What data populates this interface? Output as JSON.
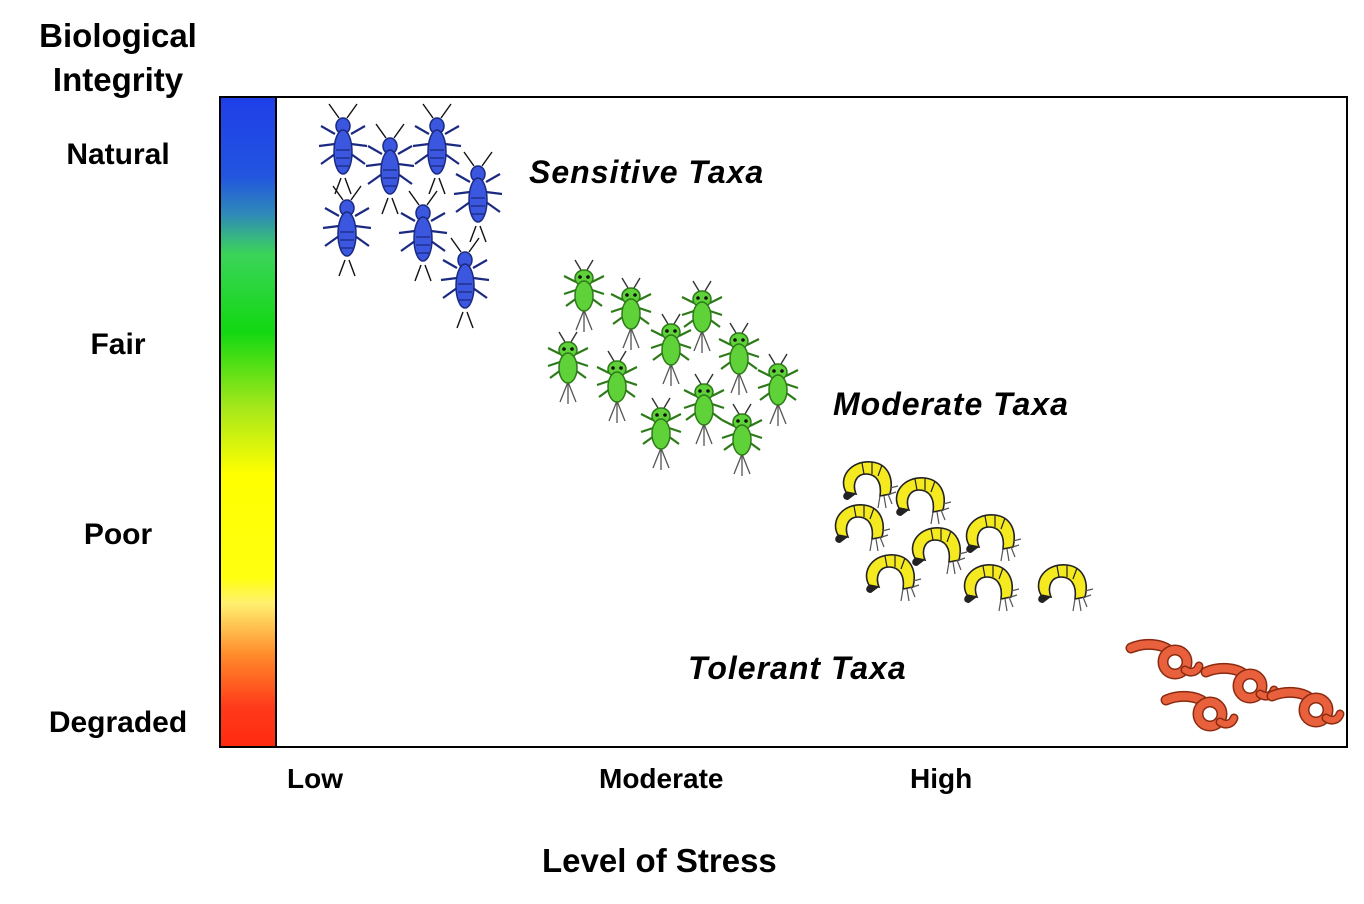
{
  "y_axis": {
    "title_line1": "Biological",
    "title_line2": "Integrity",
    "levels": [
      "Natural",
      "Fair",
      "Poor",
      "Degraded"
    ]
  },
  "x_axis": {
    "title": "Level of Stress",
    "levels": [
      "Low",
      "Moderate",
      "High"
    ]
  },
  "groups": {
    "sensitive": {
      "label": "Sensitive Taxa",
      "count": 7,
      "color": "#3b57e0",
      "icon": "stonefly-icon"
    },
    "moderate": {
      "label": "Moderate Taxa",
      "count": 12,
      "color": "#5fd23a",
      "icon": "mayfly-icon"
    },
    "tolerant_mid": {
      "count": 8,
      "color": "#f5ea20",
      "icon": "scud-icon"
    },
    "tolerant": {
      "label": "Tolerant Taxa",
      "count": 4,
      "color": "#e8603c",
      "icon": "worm-icon"
    }
  },
  "colors": {
    "gradient": [
      "#1f3fe8",
      "#12d812",
      "#ffff00",
      "#ff2a10"
    ]
  }
}
